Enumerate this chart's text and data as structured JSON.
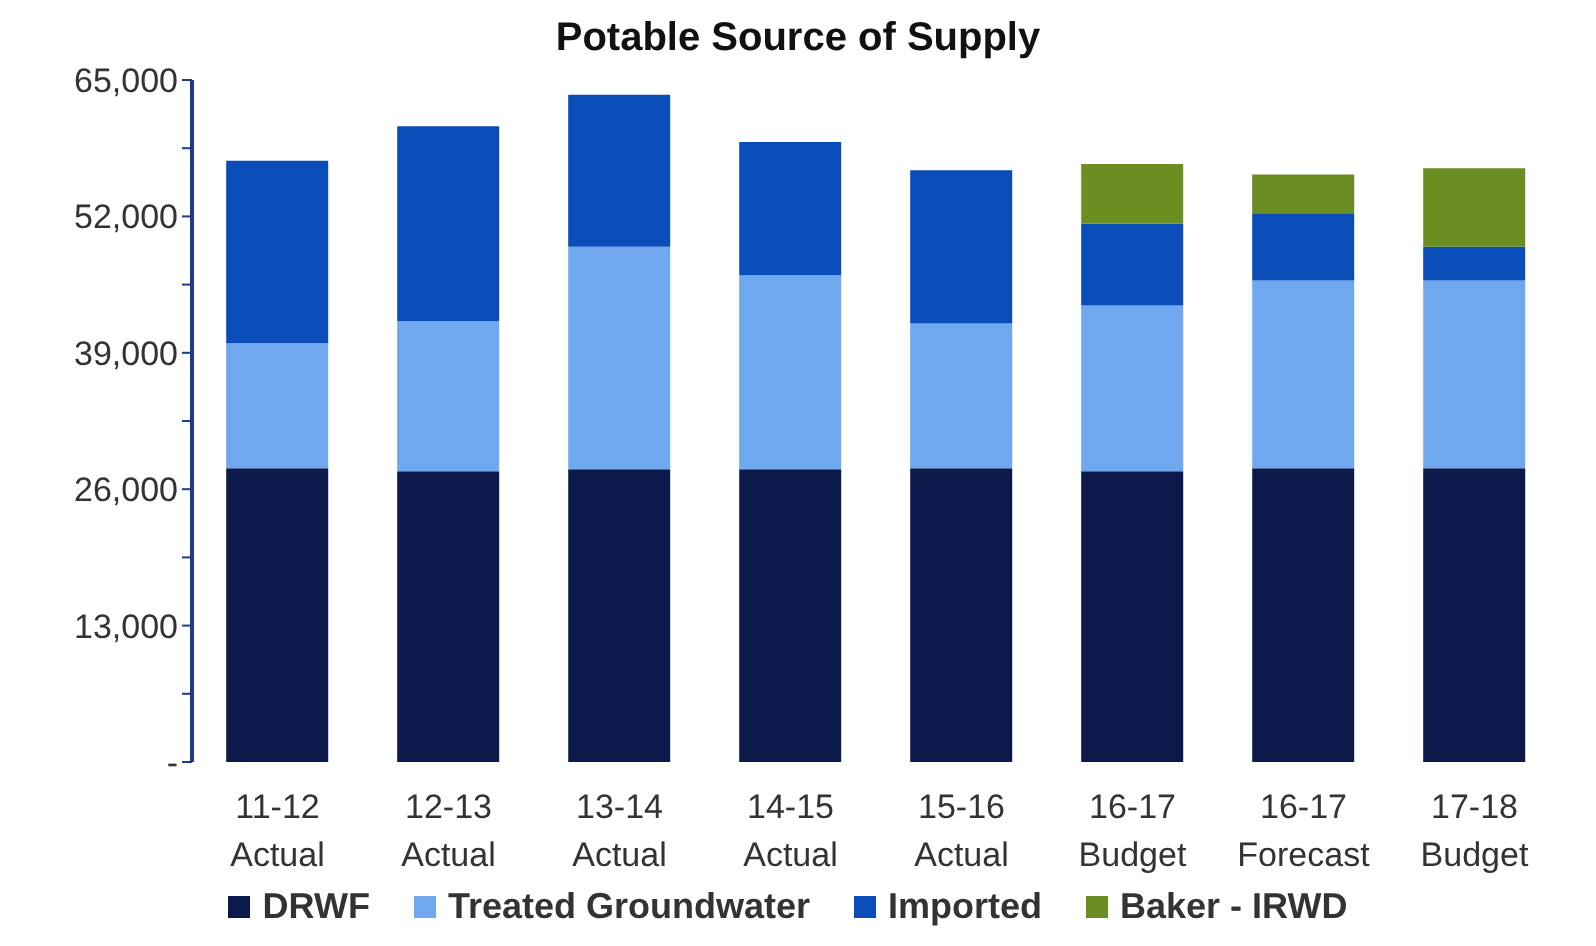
{
  "chart_data": {
    "type": "bar",
    "title": "Potable Source of Supply",
    "stacked": true,
    "categories": [
      "11-12 Actual",
      "12-13 Actual",
      "13-14 Actual",
      "14-15 Actual",
      "15-16 Actual",
      "16-17 Budget",
      "16-17 Forecast",
      "17-18 Budget"
    ],
    "series": [
      {
        "name": "DRWF",
        "color": "#0b1a4a",
        "values": [
          28000,
          27700,
          27900,
          27900,
          28000,
          27700,
          28000,
          28000
        ]
      },
      {
        "name": "Treated Groundwater",
        "color": "#6fa8ee",
        "values": [
          11900,
          14300,
          21200,
          18500,
          13800,
          15800,
          17900,
          17900
        ]
      },
      {
        "name": "Imported",
        "color": "#0a4cb8",
        "values": [
          17400,
          18600,
          14500,
          12700,
          14600,
          7800,
          6400,
          3200
        ]
      },
      {
        "name": "Baker - IRWD",
        "color": "#6b8e23",
        "values": [
          0,
          0,
          0,
          0,
          0,
          5700,
          3700,
          7500
        ]
      }
    ],
    "ylim": [
      0,
      65000
    ],
    "yticks": [
      {
        "value": 0,
        "label": "-"
      },
      {
        "value": 6500,
        "label": null
      },
      {
        "value": 13000,
        "label": "13,000"
      },
      {
        "value": 19500,
        "label": null
      },
      {
        "value": 26000,
        "label": "26,000"
      },
      {
        "value": 32500,
        "label": null
      },
      {
        "value": 39000,
        "label": "39,000"
      },
      {
        "value": 45500,
        "label": null
      },
      {
        "value": 52000,
        "label": "52,000"
      },
      {
        "value": 58500,
        "label": null
      },
      {
        "value": 65000,
        "label": "65,000"
      }
    ],
    "grid": false,
    "legend": "bottom"
  }
}
